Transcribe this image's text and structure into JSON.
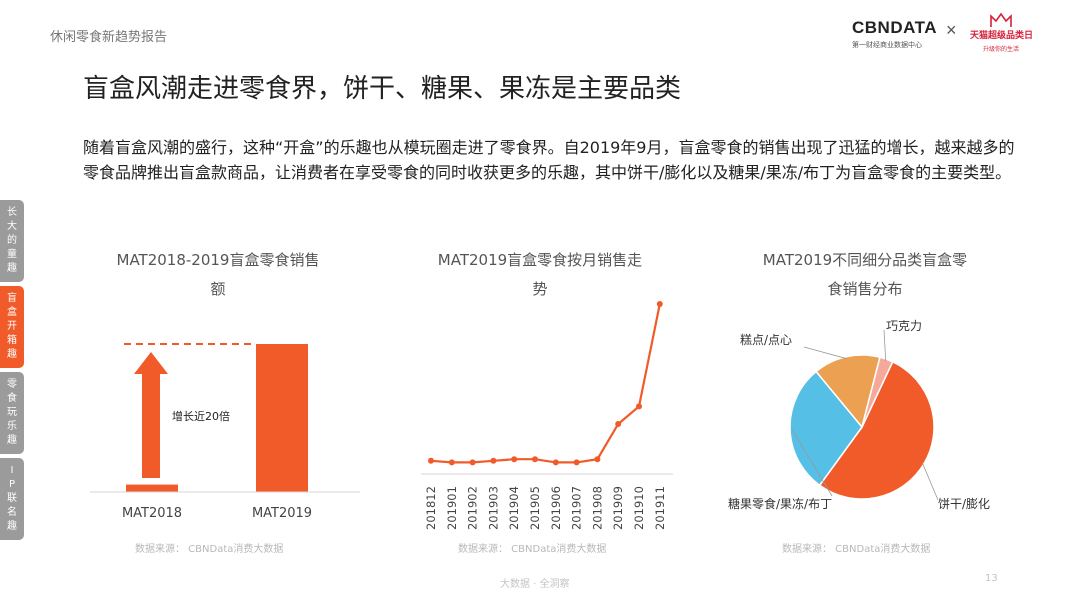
{
  "header": {
    "report_label": "休闲零食新趋势报告",
    "logo_cbn": "CBNDATA",
    "logo_cbn_sub": "第一财经商业数据中心",
    "logo_tmall_title": "天猫超级品类日",
    "logo_tmall_sub": "升级你的生活"
  },
  "title": "盲盒风潮走进零食界，饼干、糖果、果冻是主要品类",
  "intro": "随着盲盒风潮的盛行，这种“开盒”的乐趣也从模玩圈走进了零食界。自2019年9月，盲盒零食的销售出现了迅猛的增长，越来越多的零食品牌推出盲盒款商品，让消费者在享受零食的同时收获更多的乐趣，其中饼干/膨化以及糖果/果冻/布丁为盲盒零食的主要类型。",
  "side_tabs": [
    {
      "label": "长大的童趣"
    },
    {
      "label": "盲盒开箱趣"
    },
    {
      "label": "零食玩乐趣"
    },
    {
      "label": "IP联名趣"
    }
  ],
  "chart_data": [
    {
      "type": "bar",
      "title_line1": "MAT2018-2019盲盒零食销售",
      "title_line2": "额",
      "categories": [
        "MAT2018",
        "MAT2019"
      ],
      "values": [
        1,
        20
      ],
      "annotation": "增长近20倍",
      "source": "数据来源： CBNData消费大数据",
      "colors": {
        "bar": "#f15a29",
        "arrow": "#f15a29"
      }
    },
    {
      "type": "line",
      "title_line1": "MAT2019盲盒零食按月销售走",
      "title_line2": "势",
      "x": [
        "201812",
        "201901",
        "201902",
        "201903",
        "201904",
        "201905",
        "201906",
        "201907",
        "201908",
        "201909",
        "201910",
        "201911"
      ],
      "y": [
        2,
        1,
        1,
        2,
        3,
        3,
        1,
        1,
        3,
        25,
        36,
        100
      ],
      "ylim": [
        0,
        100
      ],
      "source": "数据来源： CBNData消费大数据",
      "colors": {
        "line": "#f15a29"
      }
    },
    {
      "type": "pie",
      "title_line1": "MAT2019不同细分品类盲盒零",
      "title_line2": "食销售分布",
      "slices": [
        {
          "label": "饼干/膨化",
          "value": 53,
          "color": "#f15a29"
        },
        {
          "label": "糖果零食/果冻/布丁",
          "value": 29,
          "color": "#56bfe6"
        },
        {
          "label": "糕点/点心",
          "value": 15,
          "color": "#eba052"
        },
        {
          "label": "巧克力",
          "value": 3,
          "color": "#f5aa99"
        }
      ],
      "source": "数据来源： CBNData消费大数据"
    }
  ],
  "footer": {
    "text": "大数据 · 全洞察",
    "page": "13"
  }
}
